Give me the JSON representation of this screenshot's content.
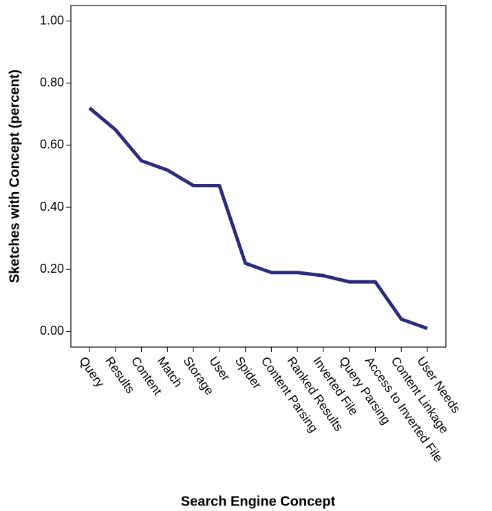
{
  "chart_data": {
    "type": "line",
    "x_label": "Search Engine Concept",
    "y_label": "Sketches with Concept (percent)",
    "categories": [
      "Query",
      "Results",
      "Content",
      "Match",
      "Storage",
      "User",
      "Spider",
      "Content Parsing",
      "Ranked Results",
      "Inverted File",
      "Query Parsing",
      "Access to Inverted File",
      "Content Linkage",
      "User Needs"
    ],
    "values": [
      0.72,
      0.65,
      0.55,
      0.52,
      0.47,
      0.47,
      0.22,
      0.19,
      0.19,
      0.18,
      0.16,
      0.16,
      0.04,
      0.01
    ],
    "color": "#2b2b7a",
    "ylim": [
      -0.05,
      1.05
    ],
    "yticks": [
      {
        "value": 0,
        "label": "0.00"
      },
      {
        "value": 0.2,
        "label": "0.20"
      },
      {
        "value": 0.4,
        "label": "0.40"
      },
      {
        "value": 0.6,
        "label": "0.60"
      },
      {
        "value": 0.8,
        "label": "0.80"
      },
      {
        "value": 1,
        "label": "1.00"
      }
    ]
  }
}
